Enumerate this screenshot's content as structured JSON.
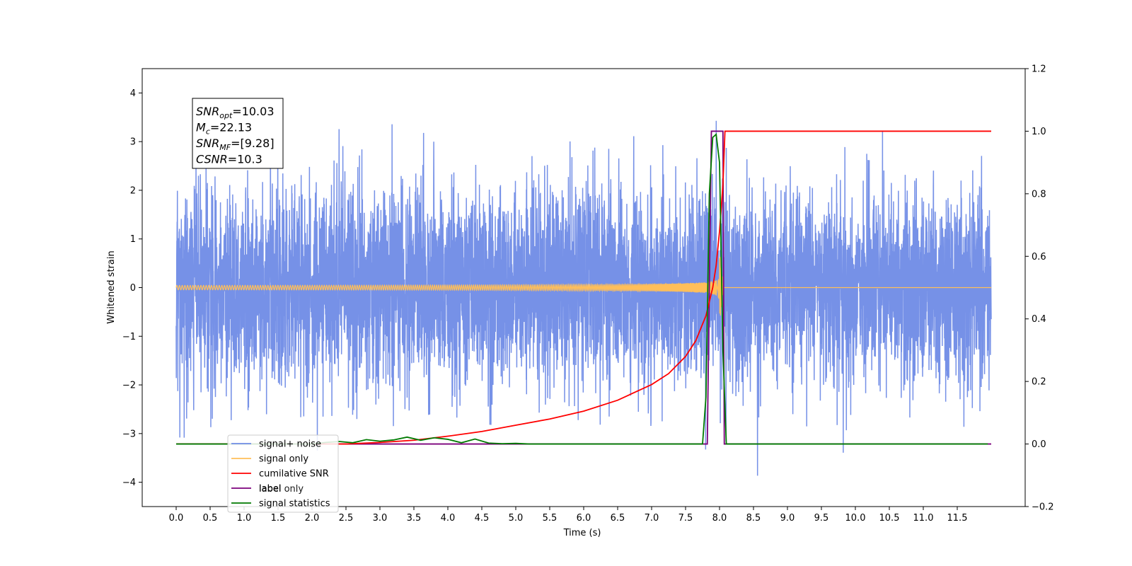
{
  "chart_data": {
    "type": "line",
    "xlabel": "Time (s)",
    "ylabel": "Whitened strain",
    "xlim": [
      -0.5,
      12.5
    ],
    "ylim": [
      -4.5,
      4.5
    ],
    "y2lim": [
      -0.2,
      1.2
    ],
    "x_ticks": [
      0.0,
      0.5,
      1.0,
      1.5,
      2.0,
      2.5,
      3.0,
      3.5,
      4.0,
      4.5,
      5.0,
      5.5,
      6.0,
      6.5,
      7.0,
      7.5,
      8.0,
      8.5,
      9.0,
      9.5,
      10.0,
      10.5,
      11.0,
      11.5
    ],
    "x_tick_labels": [
      "0.0",
      "0.5",
      "1.0",
      "1.5",
      "2.0",
      "2.5",
      "3.0",
      "3.5",
      "4.0",
      "4.5",
      "5.0",
      "5.5",
      "6.0",
      "6.5",
      "7.0",
      "7.5",
      "8.0",
      "8.5",
      "9.0",
      "9.5",
      "10.0",
      "10.5",
      "11.0",
      "11.5"
    ],
    "y_ticks": [
      4,
      3,
      2,
      1,
      0,
      -1,
      -2,
      -3,
      -4
    ],
    "y_tick_labels": [
      "4",
      "3",
      "2",
      "1",
      "0",
      "−1",
      "−2",
      "−3",
      "−4"
    ],
    "y2_ticks": [
      1.2,
      1.0,
      0.8,
      0.6,
      0.4,
      0.2,
      0.0,
      -0.2
    ],
    "y2_tick_labels": [
      "1.2",
      "1.0",
      "0.8",
      "0.6",
      "0.4",
      "0.2",
      "0.0",
      "−0.2"
    ],
    "annotation": {
      "lines": [
        {
          "base": "SNR",
          "sub": "opt",
          "rest": "=10.03"
        },
        {
          "base": "M",
          "sub": "c",
          "rest": "=22.13"
        },
        {
          "base": "SNR",
          "sub": "MF",
          "rest": "=[9.28]"
        },
        {
          "base": "CSNR",
          "sub": "",
          "rest": "=10.3"
        }
      ]
    },
    "legend": {
      "placement": "lower-left",
      "entries": [
        {
          "label": "signal+ noise",
          "color": "#6f8be6"
        },
        {
          "label": "signal only",
          "color": "#ffbf5a"
        },
        {
          "label": "cumilative SNR",
          "color": "#ff0000"
        },
        {
          "label": "label",
          "color": "#7b007b"
        },
        {
          "label": "signal statistics",
          "color": "#007a00"
        }
      ],
      "hidden_text": "label only"
    },
    "series": [
      {
        "name": "signal+ noise",
        "axis": "left",
        "color": "#6f8be6",
        "t_start": 0.0,
        "t_end": 12.0,
        "std": 1.0,
        "y_min": -3.9,
        "y_max": 4.1
      },
      {
        "name": "signal only",
        "axis": "left",
        "color": "#ffbf5a",
        "t_start": 0.0,
        "t_end": 12.0,
        "chirp_merger_time": 8.0,
        "chirp_peak_amplitude": 0.75
      },
      {
        "name": "cumilative SNR",
        "axis": "right",
        "color": "#ff0000",
        "x": [
          0.0,
          2.5,
          3.0,
          3.5,
          4.0,
          4.5,
          5.0,
          5.5,
          6.0,
          6.5,
          7.0,
          7.25,
          7.5,
          7.65,
          7.8,
          7.9,
          7.95,
          8.0,
          8.05,
          8.08,
          12.0
        ],
        "y": [
          0.0,
          0.0,
          0.005,
          0.012,
          0.025,
          0.04,
          0.06,
          0.08,
          0.105,
          0.14,
          0.19,
          0.225,
          0.28,
          0.33,
          0.41,
          0.5,
          0.57,
          0.68,
          0.83,
          1.0,
          1.0
        ]
      },
      {
        "name": "label",
        "axis": "right",
        "color": "#7b007b",
        "x": [
          0.0,
          7.82,
          7.88,
          8.05,
          8.07,
          8.1,
          12.0
        ],
        "y": [
          0.0,
          0.0,
          1.0,
          1.0,
          0.0,
          0.0,
          0.0
        ]
      },
      {
        "name": "signal statistics",
        "axis": "right",
        "color": "#007a00",
        "x": [
          0.0,
          2.0,
          2.2,
          2.4,
          2.6,
          2.8,
          3.0,
          3.2,
          3.4,
          3.6,
          3.8,
          4.0,
          4.2,
          4.4,
          4.6,
          4.8,
          5.0,
          5.2,
          7.75,
          7.8,
          7.85,
          7.9,
          7.95,
          8.0,
          8.05,
          8.1,
          11.95
        ],
        "y": [
          0.0,
          0.0,
          0.005,
          0.008,
          0.004,
          0.014,
          0.009,
          0.013,
          0.022,
          0.012,
          0.02,
          0.015,
          0.004,
          0.016,
          0.003,
          0.001,
          0.002,
          0.0,
          0.0,
          0.15,
          0.8,
          0.98,
          0.99,
          0.9,
          0.3,
          0.0,
          0.0
        ]
      }
    ]
  }
}
